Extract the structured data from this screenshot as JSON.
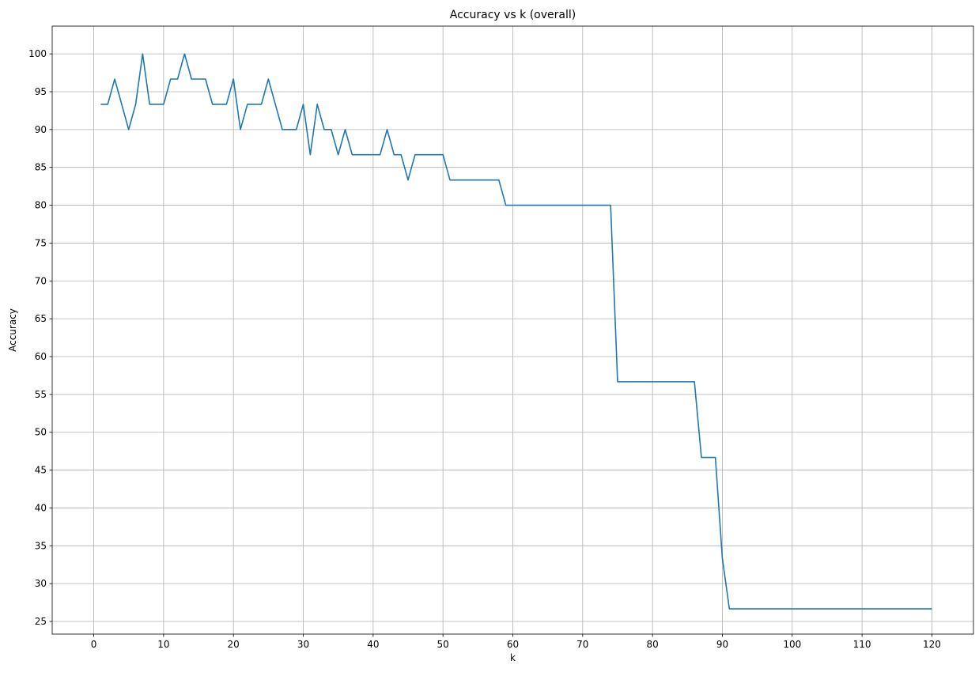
{
  "chart_data": {
    "type": "line",
    "title": "Accuracy vs k (overall)",
    "xlabel": "k",
    "ylabel": "Accuracy",
    "xlim": [
      -5.95,
      125.95
    ],
    "ylim": [
      23.33,
      103.67
    ],
    "xticks": [
      0,
      10,
      20,
      30,
      40,
      50,
      60,
      70,
      80,
      90,
      100,
      110,
      120
    ],
    "yticks": [
      25,
      30,
      35,
      40,
      45,
      50,
      55,
      60,
      65,
      70,
      75,
      80,
      85,
      90,
      95,
      100
    ],
    "grid": true,
    "line_color": "#1f77b4",
    "series": [
      {
        "x": [
          1,
          2,
          3,
          4,
          5,
          6,
          7,
          8,
          9,
          10,
          11,
          12,
          13,
          14,
          15,
          16,
          17,
          18,
          19,
          20,
          21,
          22,
          23,
          24,
          25,
          26,
          27,
          28,
          29,
          30,
          31,
          32,
          33,
          34,
          35,
          36,
          37,
          38,
          39,
          40,
          41,
          42,
          43,
          44,
          45,
          46,
          47,
          48,
          49,
          50,
          51,
          52,
          53,
          54,
          55,
          56,
          57,
          58,
          59,
          60,
          61,
          62,
          63,
          64,
          65,
          66,
          67,
          68,
          69,
          70,
          71,
          72,
          73,
          74,
          75,
          76,
          77,
          78,
          79,
          80,
          81,
          82,
          83,
          84,
          85,
          86,
          87,
          88,
          89,
          90,
          91,
          92,
          93,
          94,
          95,
          96,
          97,
          98,
          99,
          100,
          101,
          102,
          103,
          104,
          105,
          106,
          107,
          108,
          109,
          110,
          111,
          112,
          113,
          114,
          115,
          116,
          117,
          118,
          119,
          120
        ],
        "y": [
          93.33,
          93.33,
          96.67,
          93.33,
          90.0,
          93.33,
          100.0,
          93.33,
          93.33,
          93.33,
          96.67,
          96.67,
          100.0,
          96.67,
          96.67,
          96.67,
          93.33,
          93.33,
          93.33,
          96.67,
          90.0,
          93.33,
          93.33,
          93.33,
          96.67,
          93.33,
          90.0,
          90.0,
          90.0,
          93.33,
          86.67,
          93.33,
          90.0,
          90.0,
          86.67,
          90.0,
          86.67,
          86.67,
          86.67,
          86.67,
          86.67,
          90.0,
          86.67,
          86.67,
          83.33,
          86.67,
          86.67,
          86.67,
          86.67,
          86.67,
          83.33,
          83.33,
          83.33,
          83.33,
          83.33,
          83.33,
          83.33,
          83.33,
          80.0,
          80.0,
          80.0,
          80.0,
          80.0,
          80.0,
          80.0,
          80.0,
          80.0,
          80.0,
          80.0,
          80.0,
          80.0,
          80.0,
          80.0,
          80.0,
          56.67,
          56.67,
          56.67,
          56.67,
          56.67,
          56.67,
          56.67,
          56.67,
          56.67,
          56.67,
          56.67,
          56.67,
          46.67,
          46.67,
          46.67,
          33.33,
          26.67,
          26.67,
          26.67,
          26.67,
          26.67,
          26.67,
          26.67,
          26.67,
          26.67,
          26.67,
          26.67,
          26.67,
          26.67,
          26.67,
          26.67,
          26.67,
          26.67,
          26.67,
          26.67,
          26.67,
          26.67,
          26.67,
          26.67,
          26.67,
          26.67,
          26.67,
          26.67,
          26.67,
          26.67,
          26.67
        ]
      }
    ]
  }
}
